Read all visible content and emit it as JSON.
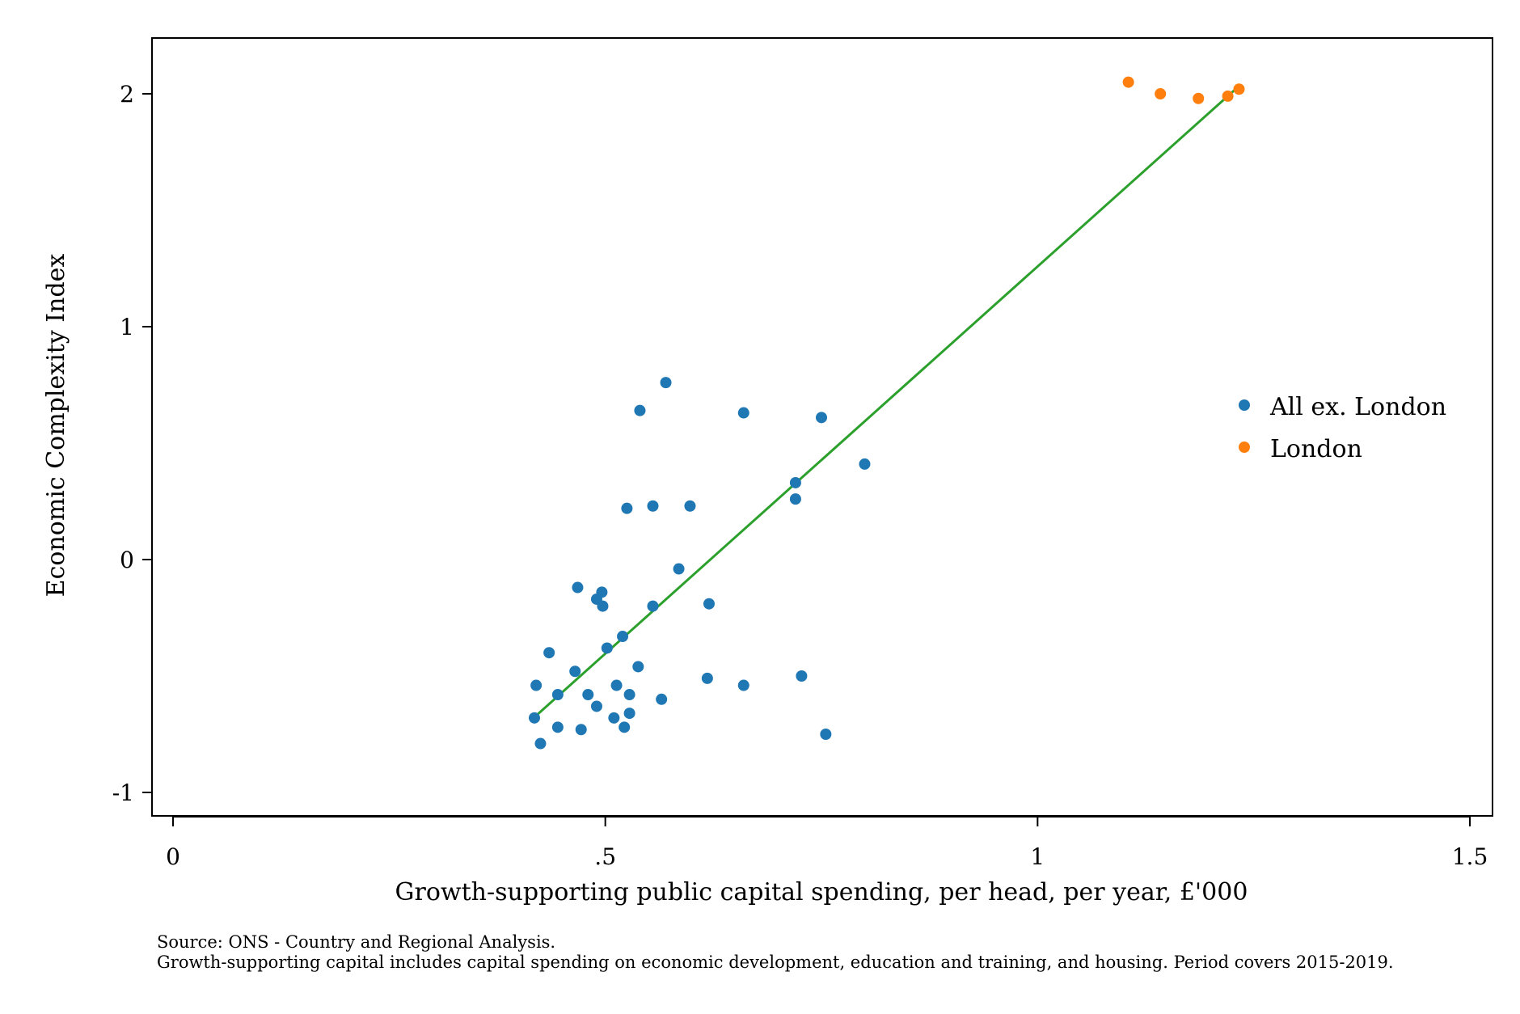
{
  "chart_data": {
    "type": "scatter",
    "title": "",
    "xlabel": "Growth-supporting public capital spending, per head, per year, £'000",
    "ylabel": "Economic Complexity Index",
    "xlim": [
      -0.025,
      1.525
    ],
    "ylim": [
      -1.1,
      2.24
    ],
    "x_ticks": [
      0,
      0.5,
      1,
      1.5
    ],
    "x_tick_labels": [
      "0",
      ".5",
      "1",
      "1.5"
    ],
    "y_ticks": [
      -1,
      0,
      1,
      2
    ],
    "y_tick_labels": [
      "-1",
      "0",
      "1",
      "2"
    ],
    "grid": false,
    "legend_position": "right",
    "series": [
      {
        "name": "All ex. London",
        "color": "#1f77b4",
        "x": [
          0.57,
          0.54,
          0.66,
          0.75,
          0.8,
          0.72,
          0.72,
          0.525,
          0.555,
          0.598,
          0.585,
          0.468,
          0.496,
          0.49,
          0.497,
          0.555,
          0.62,
          0.52,
          0.502,
          0.435,
          0.538,
          0.465,
          0.42,
          0.618,
          0.727,
          0.513,
          0.66,
          0.445,
          0.48,
          0.528,
          0.565,
          0.49,
          0.418,
          0.528,
          0.51,
          0.445,
          0.472,
          0.522,
          0.755,
          0.425
        ],
        "y": [
          0.76,
          0.64,
          0.63,
          0.61,
          0.41,
          0.33,
          0.26,
          0.22,
          0.23,
          0.23,
          -0.04,
          -0.12,
          -0.14,
          -0.17,
          -0.2,
          -0.2,
          -0.19,
          -0.33,
          -0.38,
          -0.4,
          -0.46,
          -0.48,
          -0.54,
          -0.51,
          -0.5,
          -0.54,
          -0.54,
          -0.58,
          -0.58,
          -0.58,
          -0.6,
          -0.63,
          -0.68,
          -0.66,
          -0.68,
          -0.72,
          -0.73,
          -0.72,
          -0.75,
          -0.79
        ]
      },
      {
        "name": "London",
        "color": "#ff7f0e",
        "x": [
          1.105,
          1.142,
          1.186,
          1.22,
          1.233
        ],
        "y": [
          2.05,
          2.0,
          1.98,
          1.99,
          2.02
        ]
      }
    ],
    "fit_line": {
      "color": "#2ca02c",
      "x": [
        0.42,
        1.235
      ],
      "y": [
        -0.67,
        2.04
      ]
    }
  },
  "notes": {
    "source": "Source: ONS - Country and Regional Analysis.",
    "definition": "Growth-supporting capital includes capital spending on economic development, education and training, and housing. Period covers 2015-2019."
  }
}
